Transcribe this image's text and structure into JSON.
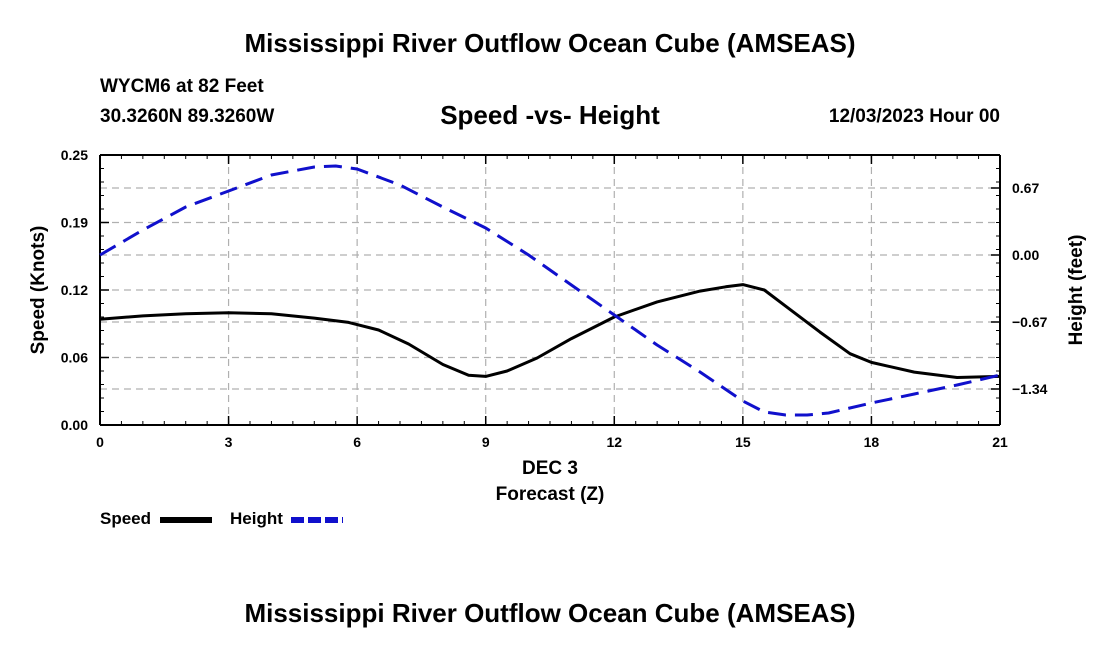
{
  "header": {
    "main_title": "Mississippi River Outflow Ocean Cube (AMSEAS)",
    "station": "WYCM6 at 82 Feet",
    "coords": "30.3260N  89.3260W",
    "subtitle": "Speed -vs- Height",
    "datetime": "12/03/2023 Hour 00"
  },
  "footer": {
    "repeat_title": "Mississippi River Outflow Ocean Cube (AMSEAS)"
  },
  "legend": {
    "speed_label": "Speed",
    "height_label": "Height"
  },
  "colors": {
    "speed": "#000000",
    "height": "#1010cc",
    "grid": "#b0b0b0"
  },
  "chart_data": {
    "type": "line",
    "title": "Speed -vs- Height",
    "xlabel": "Forecast (Z)",
    "xlabel_date": "DEC 3",
    "ylabel": "Speed (Knots)",
    "ylabel_right": "Height (feet)",
    "xlim": [
      0,
      21
    ],
    "ylim": [
      0,
      0.25
    ],
    "ylim_right": [
      -1.7,
      1.0
    ],
    "x_ticks": [
      0,
      3,
      6,
      9,
      12,
      15,
      18,
      21
    ],
    "x_tick_labels": [
      "0",
      "3",
      "6",
      "9",
      "12",
      "15",
      "18",
      "21"
    ],
    "y_ticks": [
      0,
      0.0625,
      0.125,
      0.1875,
      0.25
    ],
    "y_tick_labels": [
      "0.00",
      "0.06",
      "0.12",
      "0.19",
      "0.25"
    ],
    "y_right_ticks": [
      -1.34,
      -0.67,
      0.0,
      0.67
    ],
    "y_right_tick_labels": [
      "−1.34",
      "−0.67",
      "0.00",
      "0.67"
    ],
    "grid": true,
    "legend_position": "bottom-left",
    "series": [
      {
        "name": "Speed",
        "axis": "left",
        "style": "solid",
        "x": [
          0,
          1,
          2,
          3,
          4,
          5,
          5.8,
          6.5,
          7.2,
          8,
          8.6,
          9,
          9.5,
          10.2,
          11,
          12,
          13,
          14,
          14.6,
          15,
          15.5,
          16,
          16.8,
          17.5,
          18,
          19,
          20,
          21
        ],
        "values": [
          0.098,
          0.101,
          0.103,
          0.104,
          0.103,
          0.099,
          0.095,
          0.088,
          0.075,
          0.056,
          0.046,
          0.045,
          0.05,
          0.062,
          0.08,
          0.1,
          0.114,
          0.124,
          0.128,
          0.13,
          0.125,
          0.11,
          0.086,
          0.066,
          0.058,
          0.049,
          0.044,
          0.045
        ]
      },
      {
        "name": "Height",
        "axis": "right",
        "style": "dashed",
        "x": [
          0,
          1,
          2,
          3,
          4,
          5,
          5.5,
          6,
          7,
          8,
          9,
          10,
          11,
          12,
          13,
          14,
          15,
          15.5,
          16,
          16.5,
          17,
          18,
          19,
          20,
          21
        ],
        "values": [
          0.0,
          0.25,
          0.48,
          0.64,
          0.8,
          0.88,
          0.89,
          0.86,
          0.7,
          0.48,
          0.27,
          0.0,
          -0.3,
          -0.6,
          -0.9,
          -1.17,
          -1.46,
          -1.57,
          -1.6,
          -1.6,
          -1.58,
          -1.48,
          -1.39,
          -1.3,
          -1.2
        ]
      }
    ]
  }
}
